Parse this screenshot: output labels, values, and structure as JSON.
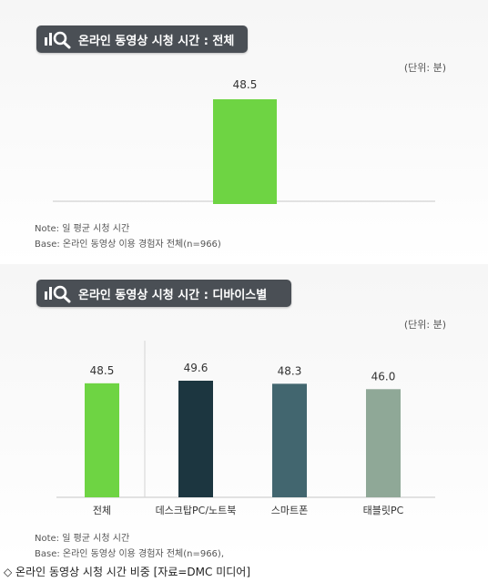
{
  "chart_data": [
    {
      "type": "bar",
      "title": "온라인 동영상 시청 시간 : 전체",
      "unit": "(단위: 분)",
      "categories": [
        ""
      ],
      "values": [
        48.5
      ],
      "value_labels": [
        "48.5"
      ],
      "colors": [
        "#6ed443"
      ],
      "ylim": [
        0,
        60
      ],
      "note_lines": [
        "Note: 일 평균 시청 시간",
        "Base: 온라인 동영상 이용 경험자 전체(n=966)"
      ]
    },
    {
      "type": "bar",
      "title": "온라인 동영상 시청 시간 : 디바이스별",
      "unit": "(단위: 분)",
      "categories": [
        "전체",
        "데스크탑PC/노트북",
        "스마트폰",
        "태블릿PC"
      ],
      "values": [
        48.5,
        49.6,
        48.3,
        46.0
      ],
      "value_labels": [
        "48.5",
        "49.6",
        "48.3",
        "46.0"
      ],
      "colors": [
        "#6ed443",
        "#1c3640",
        "#42666f",
        "#8fa897"
      ],
      "ylim": [
        0,
        60
      ],
      "note_lines": [
        "Note: 일 평균 시청 시간",
        "Base: 온라인 동영상 이용 경험자 전체(n=966),"
      ]
    }
  ],
  "caption": "◇ 온라인 동영상 시청 시간 비중 [자료=DMC 미디어]"
}
